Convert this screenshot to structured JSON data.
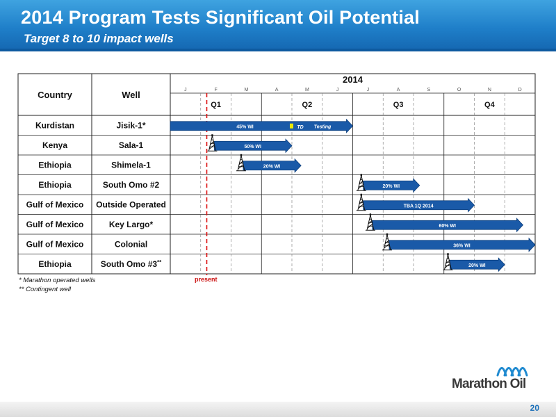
{
  "header": {
    "title": "2014 Program Tests Significant Oil Potential",
    "subtitle": "Target 8 to 10 impact wells"
  },
  "chart_data": {
    "type": "gantt",
    "year_label": "2014",
    "columns": {
      "country": "Country",
      "well": "Well"
    },
    "months": [
      "J",
      "F",
      "M",
      "A",
      "M",
      "J",
      "J",
      "A",
      "S",
      "O",
      "N",
      "D"
    ],
    "quarters": [
      "Q1",
      "Q2",
      "Q3",
      "Q4"
    ],
    "present_month": 1.2,
    "present_label": "present",
    "rows": [
      {
        "country": "Kurdistan",
        "well": "Jisik-1*",
        "start": 0.0,
        "end": 6.0,
        "label": "45% WI",
        "rig": false,
        "td_month": 4.0,
        "td_label": "TD",
        "extra_label": "Testing"
      },
      {
        "country": "Kenya",
        "well": "Sala-1",
        "start": 1.45,
        "end": 4.0,
        "label": "50% WI",
        "rig": true
      },
      {
        "country": "Ethiopia",
        "well": "Shimela-1",
        "start": 2.4,
        "end": 4.3,
        "label": "20% WI",
        "rig": true
      },
      {
        "country": "Ethiopia",
        "well": "South Omo #2",
        "start": 6.35,
        "end": 8.2,
        "label": "20% WI",
        "rig": true
      },
      {
        "country": "Gulf of Mexico",
        "well": "Outside Operated",
        "start": 6.35,
        "end": 10.0,
        "label": "TBA 1Q 2014",
        "rig": true
      },
      {
        "country": "Gulf of Mexico",
        "well": "Key Largo*",
        "start": 6.65,
        "end": 11.6,
        "label": "60% WI",
        "rig": true
      },
      {
        "country": "Gulf of Mexico",
        "well": "Colonial",
        "start": 7.2,
        "end": 12.0,
        "label": "36% WI",
        "rig": true
      },
      {
        "country": "Ethiopia",
        "well": "South Omo #3",
        "well_sup": "**",
        "start": 9.2,
        "end": 11.0,
        "label": "20% WI",
        "rig": true
      }
    ]
  },
  "footnotes": {
    "line1": "* Marathon operated wells",
    "line2": "** Contingent well"
  },
  "logo_text": "Marathon Oil",
  "page_number": "20",
  "colors": {
    "banner": "#1f7fc9",
    "bar": "#1a5aa8",
    "present_line": "#dd1111",
    "page_number": "#1a6fb8"
  }
}
